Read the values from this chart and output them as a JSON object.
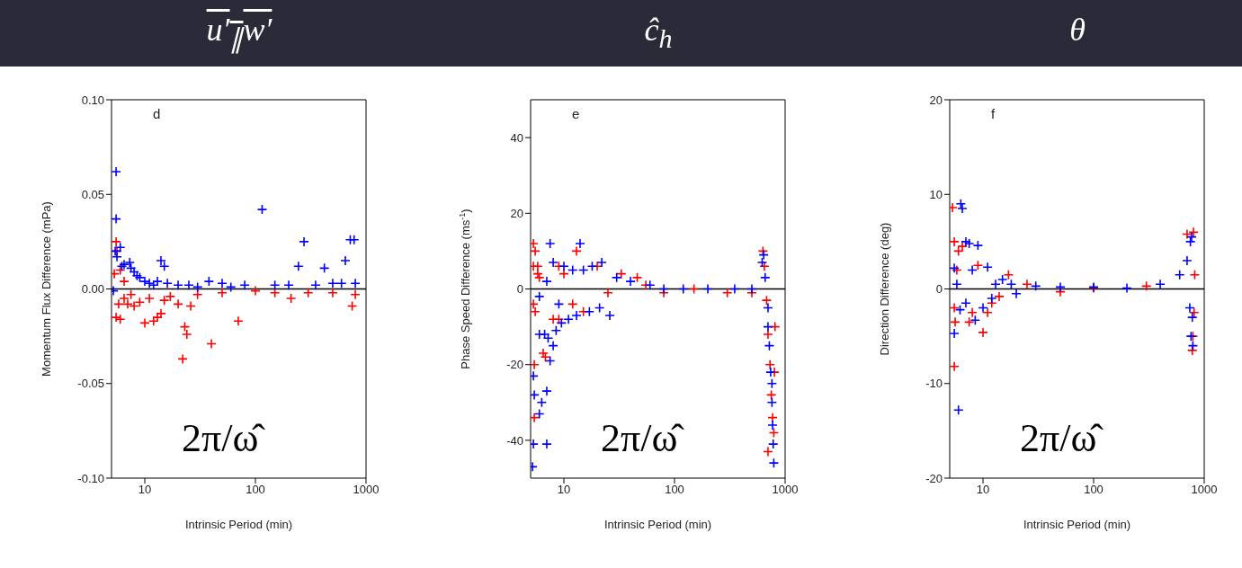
{
  "chart_data": [
    {
      "type": "scatter",
      "title": "u′$_{∥}$w′",
      "xlabel": "Intrinsic Period (min)",
      "ylabel": "Momentum Flux Difference (mPa)",
      "annotations": [
        "d",
        "2π/ω̂"
      ],
      "log": "x",
      "marker": "cross",
      "xlim": [
        5,
        1000
      ],
      "xticks": [
        10,
        100,
        1000
      ],
      "ylim": [
        -0.1,
        0.1
      ],
      "yticks": [
        {
          "value": -0.1,
          "label": "-0.10"
        },
        {
          "value": -0.05,
          "label": "-0.05"
        },
        {
          "value": 0,
          "label": "0.00"
        },
        {
          "value": 0.05,
          "label": "0.05"
        },
        {
          "value": 0.1,
          "label": "0.10"
        }
      ],
      "ref_lines": [
        {
          "axis": "y",
          "value": 0,
          "color": "#000000"
        }
      ],
      "series": [
        {
          "color": "#ff0000",
          "x": [
            5.5,
            5.6,
            5.3,
            6,
            6.5,
            5.5,
            6,
            5.8,
            6.5,
            7,
            8,
            9,
            10,
            12,
            13,
            14,
            17,
            20,
            23,
            22,
            24,
            26,
            30,
            40,
            50,
            70,
            100,
            150,
            210,
            300,
            500,
            750,
            800,
            11,
            15,
            7.5
          ],
          "values": [
            0.025,
            0.02,
            0.008,
            0.01,
            0.004,
            -0.015,
            -0.016,
            -0.008,
            -0.005,
            -0.008,
            -0.009,
            -0.007,
            -0.018,
            -0.017,
            -0.015,
            -0.013,
            -0.004,
            -0.008,
            -0.02,
            -0.037,
            -0.024,
            -0.009,
            -0.003,
            -0.029,
            -0.002,
            -0.017,
            -0.001,
            -0.002,
            -0.005,
            -0.002,
            -0.002,
            -0.009,
            -0.003,
            -0.005,
            -0.006,
            -0.003
          ]
        },
        {
          "color": "#0000ff",
          "x": [
            5.5,
            5.5,
            5.4,
            5.6,
            6,
            6.2,
            6.5,
            7.3,
            7.5,
            8,
            8.5,
            9,
            10,
            11,
            12,
            13,
            14,
            15,
            16,
            20,
            25,
            30,
            38,
            50,
            60,
            80,
            115,
            150,
            200,
            245,
            275,
            350,
            420,
            500,
            600,
            650,
            720,
            780,
            800,
            5.2
          ],
          "values": [
            0.062,
            0.037,
            0.02,
            0.017,
            0.022,
            0.012,
            0.013,
            0.014,
            0.011,
            0.009,
            0.007,
            0.006,
            0.004,
            0.003,
            0.002,
            0.004,
            0.015,
            0.012,
            0.003,
            0.002,
            0.002,
            0.001,
            0.004,
            0.003,
            0.001,
            0.002,
            0.042,
            0.002,
            0.002,
            0.012,
            0.025,
            0.002,
            0.011,
            0.003,
            0.003,
            0.015,
            0.026,
            0.026,
            0.003,
            -0.001
          ]
        }
      ]
    },
    {
      "type": "scatter",
      "title": "ĉ$_{h}$",
      "xlabel": "Intrinsic Period (min)",
      "ylabel": "Phase Speed Difference (ms$^{-1}$)",
      "annotations": [
        "e",
        "2π/ω̂"
      ],
      "log": "x",
      "marker": "cross",
      "xlim": [
        5,
        1000
      ],
      "xticks": [
        10,
        100,
        1000
      ],
      "ylim": [
        -50,
        50
      ],
      "yticks": [
        -40,
        -20,
        0,
        20,
        40
      ],
      "ref_lines": [
        {
          "axis": "y",
          "value": 0,
          "color": "#000000"
        }
      ],
      "series": [
        {
          "color": "#ff0000",
          "x": [
            5.3,
            5.5,
            5.3,
            5.8,
            6,
            5.3,
            5.5,
            5.4,
            5.4,
            6.5,
            6.8,
            8,
            9,
            10,
            13,
            12,
            15,
            20,
            25,
            33,
            46,
            55,
            80,
            150,
            300,
            500,
            630,
            650,
            680,
            700,
            730,
            750,
            770,
            790,
            800,
            810,
            700,
            5.8,
            9
          ],
          "values": [
            12,
            10,
            6,
            6,
            3,
            -4,
            -6,
            -34,
            -20,
            -17,
            -18,
            -8,
            -8,
            4,
            10,
            -4,
            -6,
            6,
            -1,
            4,
            3,
            1,
            -1,
            0,
            -1,
            -1,
            10,
            6,
            -3,
            -12,
            -20,
            -28,
            -34,
            -38,
            -22,
            -10,
            -43,
            4,
            6
          ]
        },
        {
          "color": "#0000ff",
          "x": [
            5.2,
            5.3,
            7,
            5.4,
            5.3,
            6,
            6.3,
            7,
            6,
            6.7,
            7.2,
            7.5,
            8,
            8.5,
            9.5,
            11,
            13,
            17,
            21,
            26,
            7.5,
            14,
            8,
            10,
            12,
            15,
            18,
            22,
            30,
            40,
            60,
            80,
            120,
            200,
            350,
            500,
            620,
            640,
            660,
            700,
            720,
            740,
            760,
            770,
            780,
            790,
            760,
            700,
            6,
            7,
            9
          ],
          "values": [
            -47,
            -41,
            -41,
            -28,
            -23,
            -33,
            -30,
            -27,
            -12,
            -12,
            -13,
            -19,
            -15,
            -11,
            -9,
            -8,
            -7,
            -6,
            -5,
            -7,
            12,
            12,
            7,
            6,
            5,
            5,
            6,
            7,
            3,
            2,
            1,
            0,
            0,
            0,
            0,
            0,
            7,
            9,
            3,
            -5,
            -15,
            -22,
            -30,
            -36,
            -41,
            -46,
            -25,
            -10,
            -2,
            2,
            -4
          ]
        }
      ]
    },
    {
      "type": "scatter",
      "title": "θ",
      "xlabel": "Intrinsic Period (min)",
      "ylabel": "Direction Difference (deg)",
      "annotations": [
        "f",
        "2π/ω̂"
      ],
      "log": "x",
      "marker": "cross",
      "xlim": [
        5,
        1000
      ],
      "xticks": [
        10,
        100,
        1000
      ],
      "ylim": [
        -20,
        20
      ],
      "yticks": [
        -20,
        -10,
        0,
        10,
        20
      ],
      "ref_lines": [
        {
          "axis": "y",
          "value": 0,
          "color": "#000000"
        }
      ],
      "series": [
        {
          "color": "#ff0000",
          "x": [
            5.3,
            5.5,
            6,
            6.5,
            5.8,
            5.5,
            5.6,
            5.5,
            7.5,
            8,
            10,
            11,
            9,
            12,
            17,
            25,
            50,
            100,
            300,
            700,
            800,
            780,
            790,
            810,
            820,
            14
          ],
          "values": [
            8.6,
            5,
            4,
            4.5,
            2,
            -2,
            -3.5,
            -8.2,
            -3.5,
            -2.5,
            -4.6,
            -2.5,
            2.5,
            -1.5,
            1.5,
            0.5,
            -0.3,
            0.1,
            0.3,
            5.8,
            6,
            -6.5,
            -5,
            -2.5,
            1.5,
            -0.8
          ]
        },
        {
          "color": "#0000ff",
          "x": [
            5.5,
            5.5,
            6,
            6.3,
            6.5,
            7,
            7.5,
            9,
            8,
            8.5,
            7,
            10,
            11,
            12,
            15,
            18,
            20,
            30,
            50,
            100,
            200,
            400,
            600,
            700,
            750,
            770,
            780,
            760,
            790,
            740,
            5.8,
            6.2,
            13
          ],
          "values": [
            2.2,
            -4.7,
            -12.8,
            9,
            8.5,
            5,
            4.8,
            4.6,
            2,
            -3.3,
            -1.5,
            -2,
            2.3,
            -1,
            1,
            0.5,
            -0.5,
            0.3,
            0.2,
            0.2,
            0.1,
            0.5,
            1.5,
            3,
            5,
            5.5,
            -3,
            -5,
            -6,
            -2,
            0.5,
            -2.2,
            0.5
          ]
        }
      ]
    }
  ]
}
